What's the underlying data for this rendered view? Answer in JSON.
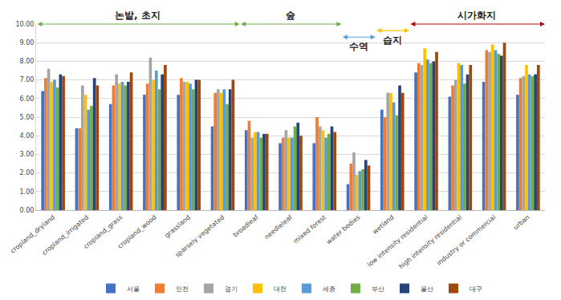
{
  "chart_data": {
    "type": "bar",
    "categories": [
      "cropland_dryland",
      "cropland_irrigated",
      "cropland_grass",
      "cropland_wood",
      "grassland",
      "sparsely vegetated",
      "broadleaf",
      "needleleaf",
      "mixed forest",
      "water bodies",
      "wetland",
      "low intensity residential",
      "high intensity residential",
      "industry or commercial",
      "urban"
    ],
    "series": [
      {
        "name": "서울",
        "color": "#4472c4",
        "values": [
          6.4,
          4.4,
          5.7,
          6.2,
          6.2,
          4.5,
          4.3,
          3.6,
          3.6,
          1.4,
          5.4,
          7.4,
          6.1,
          6.9,
          6.2
        ]
      },
      {
        "name": "인천",
        "color": "#ed7d31",
        "values": [
          7.1,
          4.4,
          6.7,
          6.8,
          7.1,
          6.3,
          4.8,
          3.9,
          5.0,
          2.5,
          5.0,
          7.9,
          6.7,
          8.6,
          7.1
        ]
      },
      {
        "name": "경기",
        "color": "#a5a5a5",
        "values": [
          7.6,
          6.7,
          7.3,
          8.2,
          6.9,
          6.5,
          3.9,
          4.3,
          4.5,
          3.1,
          6.3,
          7.8,
          7.0,
          8.5,
          7.2
        ]
      },
      {
        "name": "대전",
        "color": "#ffc000",
        "values": [
          6.9,
          6.2,
          6.8,
          7.0,
          6.9,
          6.3,
          4.2,
          3.9,
          4.3,
          1.9,
          6.3,
          8.7,
          7.9,
          8.9,
          7.8
        ]
      },
      {
        "name": "세종",
        "color": "#5b9bd5",
        "values": [
          7.0,
          5.4,
          6.9,
          7.5,
          6.8,
          6.5,
          4.2,
          3.9,
          3.9,
          2.1,
          5.8,
          8.1,
          7.8,
          8.6,
          7.3
        ]
      },
      {
        "name": "부산",
        "color": "#70ad47",
        "values": [
          6.6,
          5.6,
          6.7,
          6.5,
          6.5,
          5.7,
          3.9,
          4.5,
          4.1,
          2.2,
          5.1,
          7.9,
          6.8,
          8.4,
          7.2
        ]
      },
      {
        "name": "울산",
        "color": "#264478",
        "values": [
          7.3,
          7.1,
          6.9,
          7.3,
          7.0,
          6.5,
          4.1,
          4.7,
          4.5,
          2.7,
          6.7,
          8.0,
          7.3,
          8.3,
          7.3
        ]
      },
      {
        "name": "대구",
        "color": "#9e480e",
        "values": [
          7.2,
          6.7,
          7.4,
          7.8,
          7.0,
          7.0,
          4.1,
          4.0,
          4.2,
          2.4,
          6.3,
          8.5,
          7.8,
          9.0,
          7.8
        ]
      }
    ],
    "ylim": [
      0,
      10
    ],
    "yticks": [
      {
        "value": 0,
        "label": "0.00"
      },
      {
        "value": 1,
        "label": "1.00"
      },
      {
        "value": 2,
        "label": "2.00"
      },
      {
        "value": 3,
        "label": "3.00"
      },
      {
        "value": 4,
        "label": "4.00"
      },
      {
        "value": 5,
        "label": "5.00"
      },
      {
        "value": 6,
        "label": "6.00"
      },
      {
        "value": 7,
        "label": "7.00"
      },
      {
        "value": 8,
        "label": "8.00"
      },
      {
        "value": 9,
        "label": "9.00"
      },
      {
        "value": 10,
        "label": "10.00"
      }
    ],
    "grid": true,
    "legend": "bottom",
    "annotations": [
      {
        "text": "논밭, 초지",
        "from": "cropland_dryland",
        "to": "sparsely vegetated",
        "color": "#70ad47"
      },
      {
        "text": "숲",
        "from": "broadleaf",
        "to": "mixed forest",
        "color": "#70ad47"
      },
      {
        "text": "수역",
        "from": "water bodies",
        "to": "water bodies",
        "color": "#5b9bd5"
      },
      {
        "text": "습지",
        "from": "wetland",
        "to": "wetland",
        "color": "#ffc000"
      },
      {
        "text": "시가화지",
        "from": "low intensity residential",
        "to": "urban",
        "color": "#c00000"
      }
    ]
  }
}
